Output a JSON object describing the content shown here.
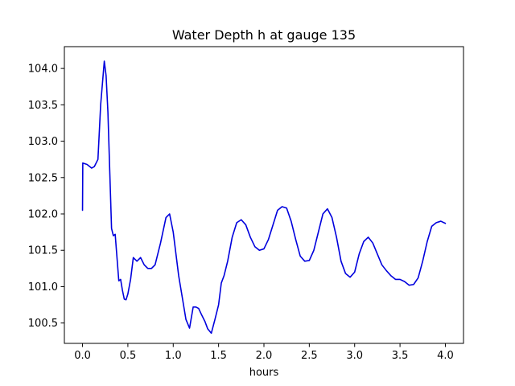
{
  "chart_data": {
    "type": "line",
    "title": "Water Depth h at gauge 135",
    "xlabel": "hours",
    "ylabel": "",
    "xlim": [
      -0.2,
      4.2
    ],
    "ylim": [
      100.22,
      104.3
    ],
    "xticks": [
      0.0,
      0.5,
      1.0,
      1.5,
      2.0,
      2.5,
      3.0,
      3.5,
      4.0
    ],
    "xtick_labels": [
      "0.0",
      "0.5",
      "1.0",
      "1.5",
      "2.0",
      "2.5",
      "3.0",
      "3.5",
      "4.0"
    ],
    "yticks": [
      100.5,
      101.0,
      101.5,
      102.0,
      102.5,
      103.0,
      103.5,
      104.0
    ],
    "ytick_labels": [
      "100.5",
      "101.0",
      "101.5",
      "102.0",
      "102.5",
      "103.0",
      "103.5",
      "104.0"
    ],
    "grid": false,
    "legend": "none",
    "series": [
      {
        "color": "#0000dd",
        "x": [
          0.0,
          0.003,
          0.05,
          0.1,
          0.13,
          0.17,
          0.2,
          0.22,
          0.24,
          0.26,
          0.28,
          0.3,
          0.32,
          0.34,
          0.36,
          0.38,
          0.4,
          0.42,
          0.44,
          0.46,
          0.48,
          0.5,
          0.53,
          0.56,
          0.6,
          0.64,
          0.68,
          0.72,
          0.76,
          0.8,
          0.86,
          0.92,
          0.96,
          1.0,
          1.03,
          1.06,
          1.1,
          1.14,
          1.18,
          1.22,
          1.25,
          1.28,
          1.31,
          1.35,
          1.38,
          1.42,
          1.46,
          1.5,
          1.53,
          1.56,
          1.6,
          1.65,
          1.7,
          1.75,
          1.8,
          1.85,
          1.9,
          1.95,
          2.0,
          2.05,
          2.1,
          2.15,
          2.2,
          2.25,
          2.3,
          2.35,
          2.4,
          2.45,
          2.5,
          2.55,
          2.6,
          2.65,
          2.7,
          2.75,
          2.8,
          2.85,
          2.9,
          2.95,
          3.0,
          3.05,
          3.1,
          3.15,
          3.2,
          3.25,
          3.3,
          3.35,
          3.4,
          3.45,
          3.5,
          3.55,
          3.6,
          3.65,
          3.7,
          3.75,
          3.8,
          3.85,
          3.9,
          3.95,
          4.0
        ],
        "y": [
          102.05,
          102.7,
          102.68,
          102.63,
          102.65,
          102.75,
          103.5,
          103.8,
          104.1,
          103.9,
          103.4,
          102.6,
          101.8,
          101.7,
          101.72,
          101.4,
          101.08,
          101.1,
          100.95,
          100.83,
          100.82,
          100.9,
          101.1,
          101.4,
          101.35,
          101.4,
          101.3,
          101.25,
          101.25,
          101.3,
          101.6,
          101.95,
          102.0,
          101.75,
          101.45,
          101.15,
          100.85,
          100.55,
          100.43,
          100.72,
          100.72,
          100.7,
          100.62,
          100.52,
          100.42,
          100.36,
          100.55,
          100.75,
          101.05,
          101.15,
          101.35,
          101.68,
          101.88,
          101.92,
          101.85,
          101.68,
          101.55,
          101.5,
          101.52,
          101.65,
          101.85,
          102.05,
          102.1,
          102.08,
          101.9,
          101.65,
          101.42,
          101.35,
          101.36,
          101.5,
          101.75,
          102.0,
          102.07,
          101.95,
          101.68,
          101.35,
          101.18,
          101.13,
          101.2,
          101.45,
          101.62,
          101.68,
          101.6,
          101.45,
          101.3,
          101.22,
          101.15,
          101.1,
          101.1,
          101.07,
          101.02,
          101.03,
          101.12,
          101.35,
          101.62,
          101.83,
          101.88,
          101.9,
          101.87
        ]
      }
    ]
  }
}
